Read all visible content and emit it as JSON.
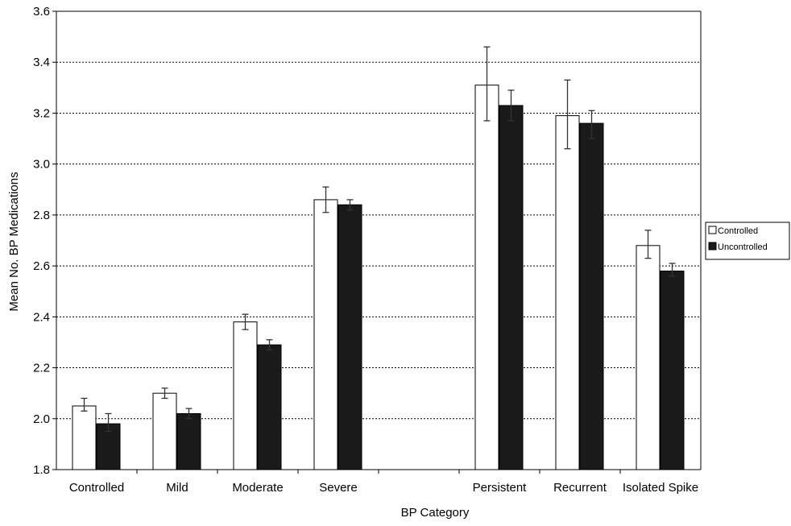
{
  "chart_data": {
    "type": "bar",
    "xlabel": "BP Category",
    "ylabel": "Mean No. BP Medications",
    "ylim": [
      1.8,
      3.6
    ],
    "ytick_step": 0.2,
    "ytick_labels": [
      "1.8",
      "2.0",
      "2.2",
      "2.4",
      "2.6",
      "2.8",
      "3.0",
      "3.2",
      "3.4",
      "3.6"
    ],
    "grid": "horizontal dotted",
    "legend_position": "right",
    "categories": [
      "Controlled",
      "Mild",
      "Moderate",
      "Severe",
      "",
      "Persistent",
      "Recurrent",
      "Isolated Spike"
    ],
    "series": [
      {
        "name": "Controlled",
        "color": "#ffffff",
        "values": [
          2.05,
          2.1,
          2.38,
          2.86,
          null,
          3.31,
          3.19,
          2.68
        ],
        "error_low": [
          2.03,
          2.08,
          2.35,
          2.81,
          null,
          3.17,
          3.06,
          2.63
        ],
        "error_high": [
          2.08,
          2.12,
          2.41,
          2.91,
          null,
          3.46,
          3.33,
          2.74
        ]
      },
      {
        "name": "Uncontrolled",
        "color": "#1a1a1a",
        "values": [
          1.98,
          2.02,
          2.29,
          2.84,
          null,
          3.23,
          3.16,
          2.58
        ],
        "error_low": [
          1.95,
          2.0,
          2.27,
          2.82,
          null,
          3.17,
          3.1,
          2.56
        ],
        "error_high": [
          2.02,
          2.04,
          2.31,
          2.86,
          null,
          3.29,
          3.21,
          2.61
        ]
      }
    ]
  }
}
